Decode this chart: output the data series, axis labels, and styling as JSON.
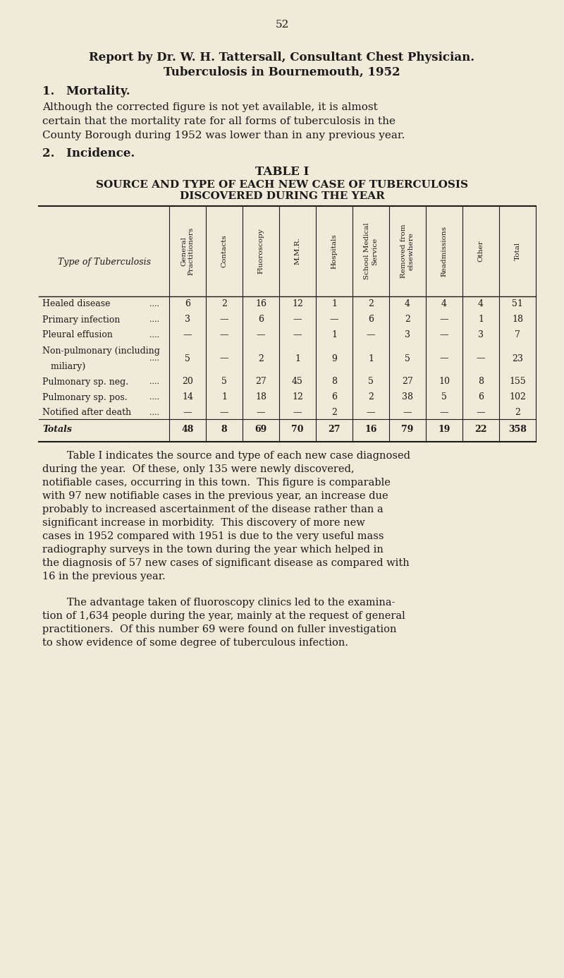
{
  "background_color": "#f0ead8",
  "page_number": "52",
  "title_line1": "Report by Dr. W. H. Tattersall, Consultant Chest Physician.",
  "title_line2": "Tuberculosis in Bournemouth, 1952",
  "section1_header": "1. Mortality.",
  "section1_text": "Although the corrected figure is not yet available, it is almost\ncertain that the mortality rate for all forms of tuberculosis in the\nCounty Borough during 1952 was lower than in any previous year.",
  "section2_header": "2. Incidence.",
  "table_title": "TABLE I",
  "table_subtitle1": "SOURCE AND TYPE OF EACH NEW CASE OF TUBERCULOSIS",
  "table_subtitle2": "DISCOVERED DURING THE YEAR",
  "col_headers": [
    "General\nPractitioners",
    "Contacts",
    "Fluoroscopy",
    "M.M.R.",
    "Hospitals",
    "School Medical\nService",
    "Removed from\nelsewhere",
    "Readmissions",
    "Other",
    "Total"
  ],
  "row_headers": [
    "Healed disease",
    "Primary infection",
    "Pleural effusion",
    "Non-pulmonary (including\n   miliary)",
    "Pulmonary sp. neg.",
    "Pulmonary sp. pos.",
    "Notified after death",
    "Totals"
  ],
  "row_headers_italic": [
    false,
    false,
    false,
    false,
    false,
    false,
    false,
    true
  ],
  "table_data": [
    [
      6,
      2,
      16,
      12,
      1,
      2,
      4,
      4,
      4,
      51
    ],
    [
      3,
      "—",
      6,
      "—",
      "—",
      6,
      2,
      "—",
      1,
      18
    ],
    [
      "—",
      "—",
      "—",
      "—",
      1,
      "—",
      3,
      "—",
      3,
      7
    ],
    [
      5,
      "—",
      2,
      1,
      9,
      1,
      5,
      "—",
      "—",
      23
    ],
    [
      20,
      5,
      27,
      45,
      8,
      5,
      27,
      10,
      8,
      155
    ],
    [
      14,
      1,
      18,
      12,
      6,
      2,
      38,
      5,
      6,
      102
    ],
    [
      "—",
      "—",
      "—",
      "—",
      2,
      "—",
      "—",
      "—",
      "—",
      2
    ],
    [
      48,
      8,
      69,
      70,
      27,
      16,
      79,
      19,
      22,
      358
    ]
  ],
  "paragraph1": "Table I indicates the source and type of each new case diagnosed\nduring the year.  Of these, only 135 were newly discovered,\nnotifiable cases, occurring in this town.  This figure is comparable\nwith 97 new notifiable cases in the previous year, an increase due\nprobably to increased ascertainment of the disease rather than a\nsignificant increase in morbidity.  This discovery of more new\ncases in 1952 compared with 1951 is due to the very useful mass\nradiography surveys in the town during the year which helped in\nthe diagnosis of 57 new cases of significant disease as compared with\n16 in the previous year.",
  "paragraph2": "The advantage taken of fluoroscopy clinics led to the examina-\ntion of 1,634 people during the year, mainly at the request of general\npractitioners.  Of this number 69 were found on fuller investigation\nto show evidence of some degree of tuberculous infection."
}
